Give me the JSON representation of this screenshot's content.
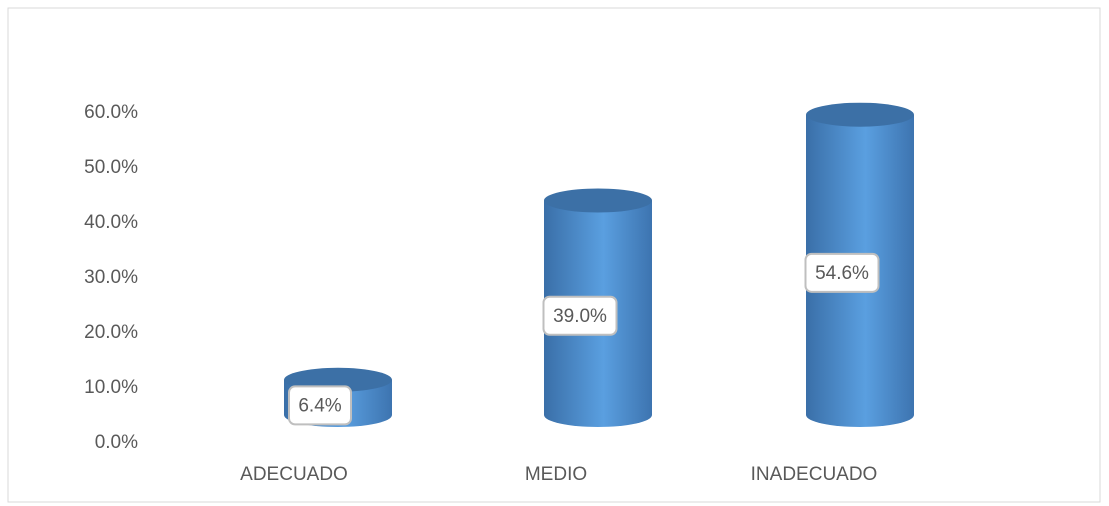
{
  "chart_data": {
    "type": "cylinder",
    "categories": [
      "ADECUADO",
      "MEDIO",
      "INADECUADO"
    ],
    "values": [
      6.4,
      39.0,
      54.6
    ],
    "value_labels": [
      "6.4%",
      "39.0%",
      "54.6%"
    ],
    "color": "#5a9fe0",
    "ylim": [
      0,
      60
    ],
    "yticks": [
      {
        "value": 0,
        "label": "0.0%"
      },
      {
        "value": 10,
        "label": "10.0%"
      },
      {
        "value": 20,
        "label": "20.0%"
      },
      {
        "value": 30,
        "label": "30.0%"
      },
      {
        "value": 40,
        "label": "40.0%"
      },
      {
        "value": 50,
        "label": "50.0%"
      },
      {
        "value": 60,
        "label": "60.0%"
      }
    ],
    "grid": false
  }
}
